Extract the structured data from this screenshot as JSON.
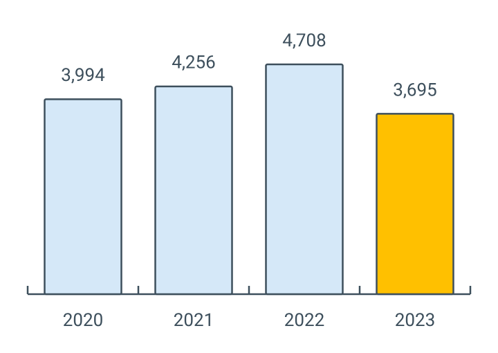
{
  "chart_data": {
    "type": "bar",
    "categories": [
      "2020",
      "2021",
      "2022",
      "2023"
    ],
    "values": [
      3994,
      4256,
      4708,
      3695
    ],
    "value_labels": [
      "3,994",
      "4,256",
      "4,708",
      "3,695"
    ],
    "colors": [
      "#d5e8f8",
      "#d5e8f8",
      "#d5e8f8",
      "#ffc000"
    ]
  }
}
